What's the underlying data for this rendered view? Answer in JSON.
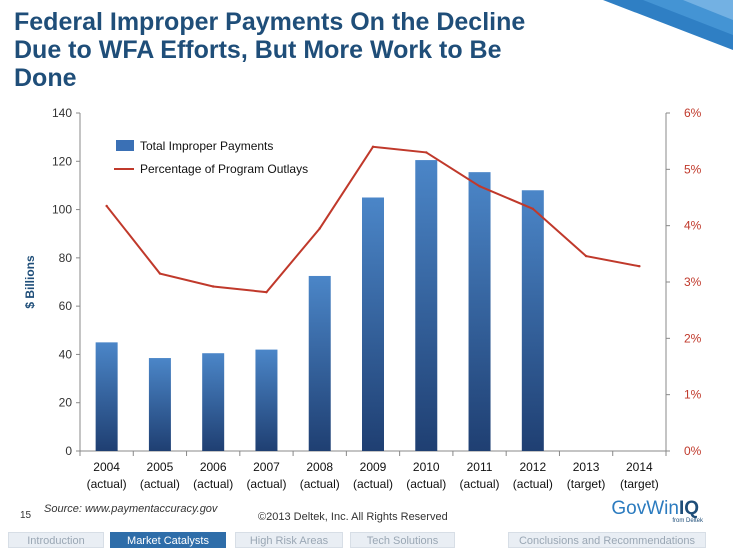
{
  "slide": {
    "title": "Federal Improper Payments On the Decline Due to WFA Efforts, But More Work to Be Done",
    "page_number": "15",
    "source": "Source:  www.paymentaccuracy.gov",
    "copyright": "©2013 Deltek, Inc. All Rights Reserved",
    "brand_gov": "GovWin",
    "brand_iq": "IQ",
    "brand_sub": "from Deltek",
    "accent_color": "#1f4e79"
  },
  "nav": {
    "tabs": [
      {
        "label": "Introduction",
        "active": false
      },
      {
        "label": "Market Catalysts",
        "active": true
      },
      {
        "label": "High Risk Areas",
        "active": false
      },
      {
        "label": "Tech Solutions",
        "active": false
      },
      {
        "label": "Conclusions and Recommendations",
        "active": false
      }
    ]
  },
  "chart_data": {
    "type": "bar",
    "categories": [
      [
        "2004",
        "(actual)"
      ],
      [
        "2005",
        "(actual)"
      ],
      [
        "2006",
        "(actual)"
      ],
      [
        "2007",
        "(actual)"
      ],
      [
        "2008",
        "(actual)"
      ],
      [
        "2009",
        "(actual)"
      ],
      [
        "2010",
        "(actual)"
      ],
      [
        "2011",
        "(actual)"
      ],
      [
        "2012",
        "(actual)"
      ],
      [
        "2013",
        "(target)"
      ],
      [
        "2014",
        "(target)"
      ]
    ],
    "series": [
      {
        "name": "Total Improper Payments",
        "type": "bar",
        "axis": "left",
        "color": "#3a70b5",
        "values": [
          45,
          38.5,
          40.5,
          42,
          72.5,
          105,
          120.5,
          115.5,
          108,
          null,
          null
        ]
      },
      {
        "name": "Percentage of Program Outlays",
        "type": "line",
        "axis": "right",
        "color": "#c0392b",
        "values": [
          4.35,
          3.15,
          2.92,
          2.82,
          3.95,
          5.4,
          5.3,
          4.7,
          4.3,
          3.46,
          3.28
        ]
      }
    ],
    "ylabel": "$ Billions",
    "ylim": [
      0,
      140
    ],
    "y_ticks": [
      "0",
      "20",
      "40",
      "60",
      "80",
      "100",
      "120",
      "140"
    ],
    "y2lim": [
      0,
      6
    ],
    "y2_ticks": [
      "0%",
      "1%",
      "2%",
      "3%",
      "4%",
      "5%",
      "6%"
    ],
    "legend_position": "top-left",
    "grid": false
  }
}
